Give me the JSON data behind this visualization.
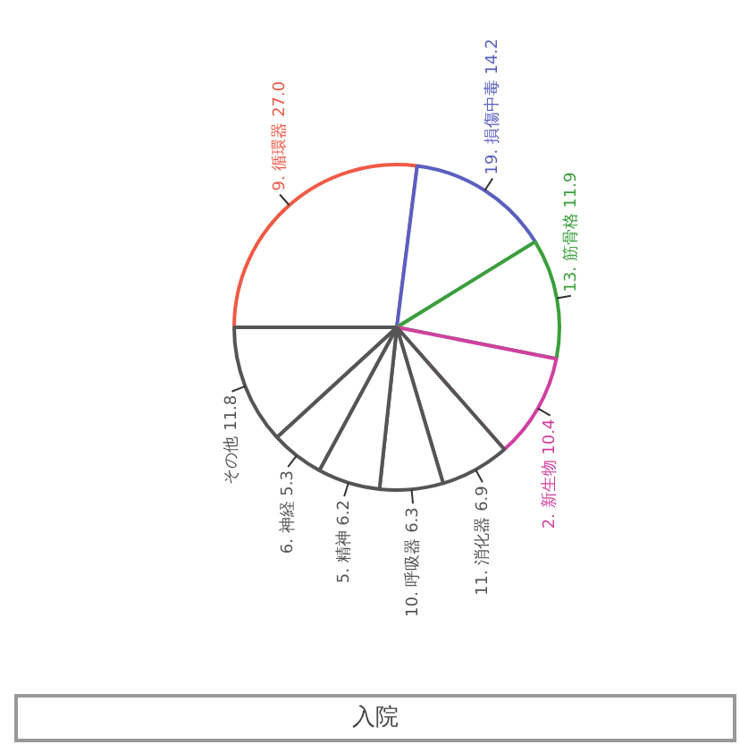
{
  "chart_data": {
    "type": "pie",
    "title": "入院",
    "categories": [
      "9. 循環器",
      "19. 損傷中毒",
      "13. 筋骨格",
      "2. 新生物",
      "11. 消化器",
      "10. 呼吸器",
      "5. 精神",
      "6. 神経",
      "その他"
    ],
    "values": [
      27.0,
      14.2,
      11.9,
      10.4,
      6.9,
      6.3,
      6.2,
      5.3,
      11.8
    ],
    "colors": [
      "#f05a46",
      "#5a5fc0",
      "#3aa03a",
      "#d040a0",
      "#555555",
      "#555555",
      "#555555",
      "#555555",
      "#555555"
    ],
    "value_labels": [
      "27.0",
      "14.2",
      "11.9",
      "10.4",
      "6.9",
      "6.3",
      "6.2",
      "5.3",
      "11.8"
    ],
    "legend": false
  }
}
